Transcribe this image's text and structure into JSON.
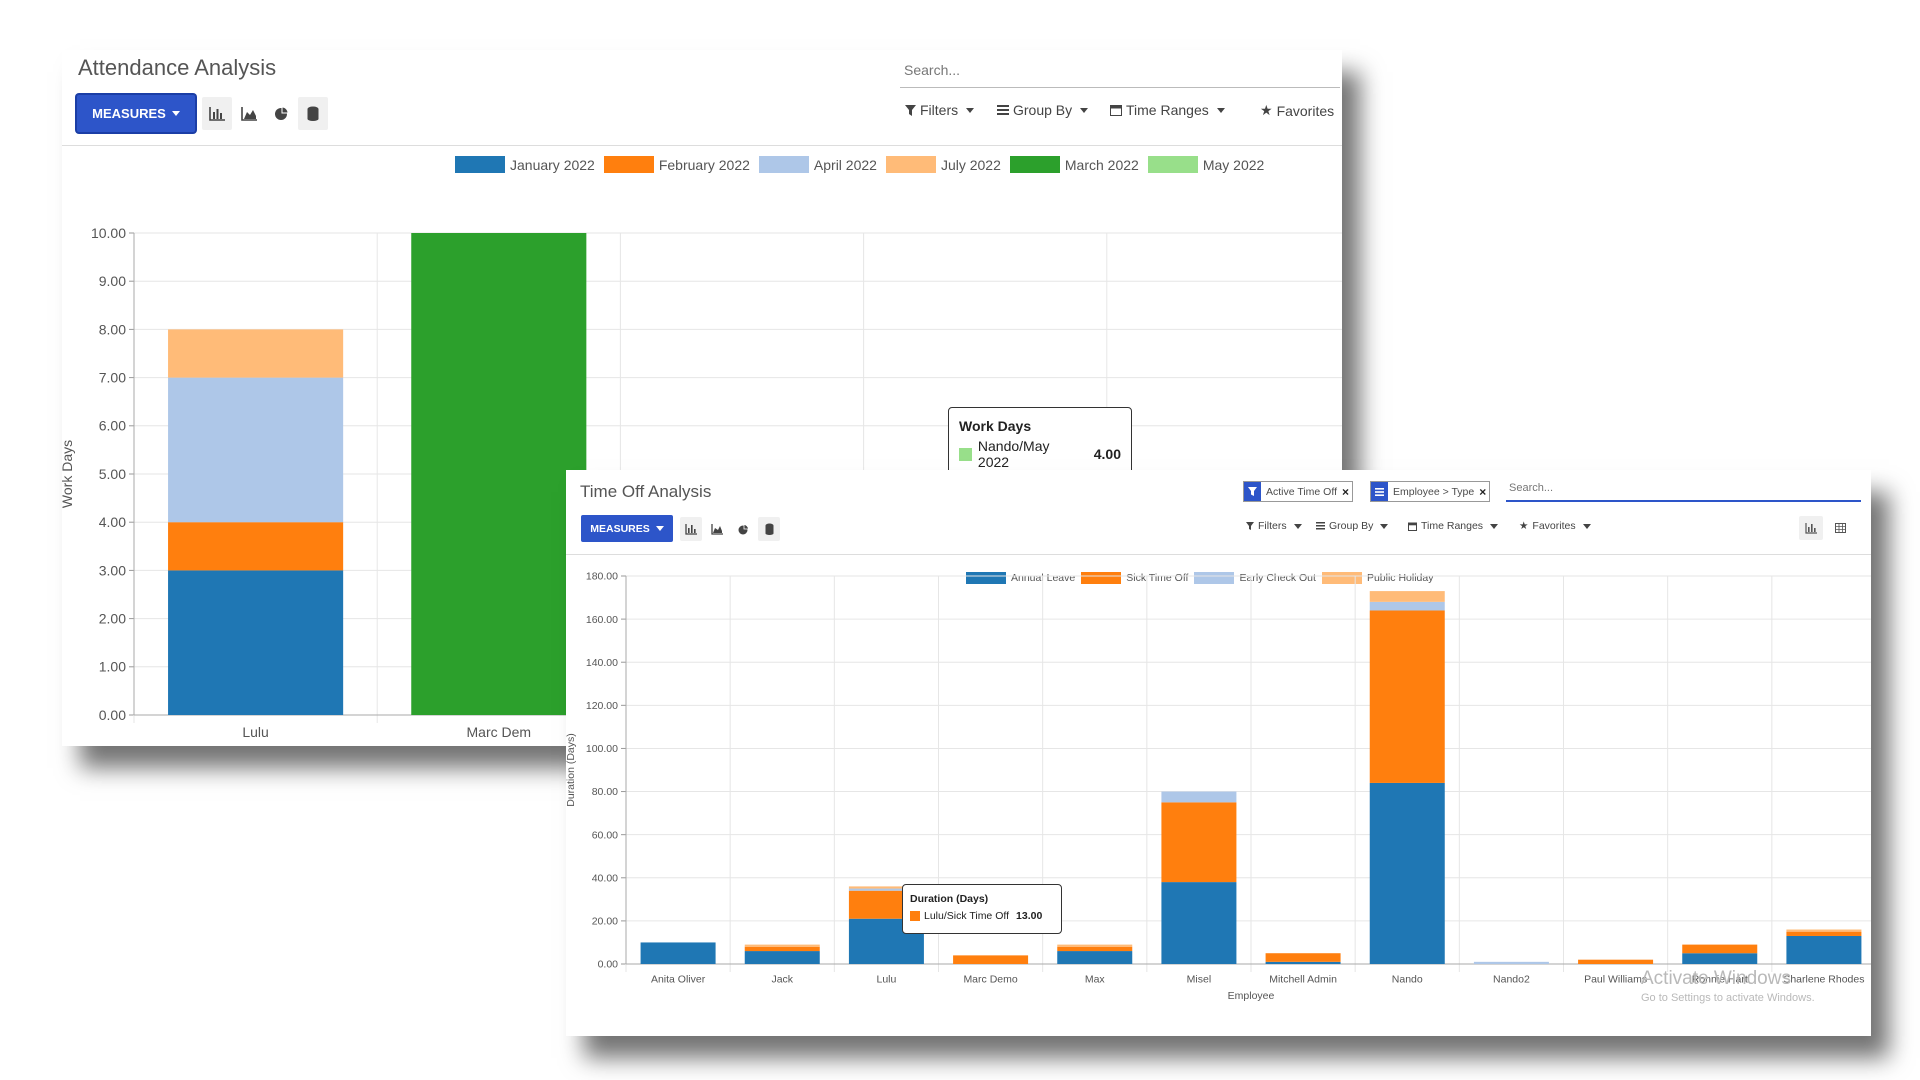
{
  "attendance": {
    "title": "Attendance Analysis",
    "measures_label": "MEASURES",
    "search_placeholder": "Search...",
    "filters_label": "Filters",
    "groupby_label": "Group By",
    "timeranges_label": "Time Ranges",
    "favorites_label": "Favorites",
    "tooltip": {
      "title": "Work Days",
      "series": "Nando/May 2022",
      "value": "4.00"
    },
    "chart_data": {
      "type": "bar",
      "stacked": true,
      "ylabel": "Work Days",
      "ylim": [
        0,
        10
      ],
      "yticks": [
        "0.00",
        "1.00",
        "2.00",
        "3.00",
        "4.00",
        "5.00",
        "6.00",
        "7.00",
        "8.00",
        "9.00",
        "10.00"
      ],
      "categories": [
        "Lulu",
        "Marc Dem",
        "",
        "",
        ""
      ],
      "series": [
        {
          "name": "January 2022",
          "color": "#1f77b4",
          "values": [
            3,
            0,
            0,
            0,
            0
          ]
        },
        {
          "name": "February 2022",
          "color": "#ff7f0e",
          "values": [
            1,
            0,
            0,
            0,
            0
          ]
        },
        {
          "name": "April 2022",
          "color": "#aec7e8",
          "values": [
            3,
            0,
            0,
            0,
            0
          ]
        },
        {
          "name": "July 2022",
          "color": "#ffbb78",
          "values": [
            1,
            0,
            0,
            0,
            0
          ]
        },
        {
          "name": "March 2022",
          "color": "#2ca02c",
          "values": [
            0,
            10,
            0,
            0,
            0
          ]
        },
        {
          "name": "May 2022",
          "color": "#98df8a",
          "values": [
            0,
            0,
            0,
            0,
            4
          ]
        }
      ],
      "grid": true,
      "legend": "top"
    }
  },
  "timeoff": {
    "title": "Time Off Analysis",
    "measures_label": "MEASURES",
    "facets": [
      {
        "icon": "filter-icon",
        "label": "Active Time Off"
      },
      {
        "icon": "groupby-icon",
        "label": "Employee > Type"
      }
    ],
    "search_placeholder": "Search...",
    "filters_label": "Filters",
    "groupby_label": "Group By",
    "timeranges_label": "Time Ranges",
    "favorites_label": "Favorites",
    "tooltip": {
      "title": "Duration (Days)",
      "series": "Lulu/Sick Time Off",
      "value": "13.00"
    },
    "watermark": {
      "line1": "Activate Windows",
      "line2": "Go to Settings to activate Windows."
    },
    "chart_data": {
      "type": "bar",
      "stacked": true,
      "xlabel": "Employee",
      "ylabel": "Duration (Days)",
      "ylim": [
        0,
        180
      ],
      "yticks": [
        "0.00",
        "20.00",
        "40.00",
        "60.00",
        "80.00",
        "100.00",
        "120.00",
        "140.00",
        "160.00",
        "180.00"
      ],
      "categories": [
        "Anita Oliver",
        "Jack",
        "Lulu",
        "Marc Demo",
        "Max",
        "Misel",
        "Mitchell Admin",
        "Nando",
        "Nando2",
        "Paul Williams",
        "Ronnie Hart",
        "Sharlene Rhodes"
      ],
      "series": [
        {
          "name": "Annual Leave",
          "color": "#1f77b4",
          "values": [
            10,
            6,
            21,
            0,
            6,
            38,
            1,
            84,
            0,
            0,
            5,
            13
          ]
        },
        {
          "name": "Sick Time Off",
          "color": "#ff7f0e",
          "values": [
            0,
            2,
            13,
            4,
            2,
            37,
            4,
            80,
            0,
            2,
            4,
            2
          ]
        },
        {
          "name": "Early Check Out",
          "color": "#aec7e8",
          "values": [
            0,
            0,
            1,
            0,
            0,
            5,
            0,
            4,
            1,
            0,
            0,
            0
          ]
        },
        {
          "name": "Public Holiday",
          "color": "#ffbb78",
          "values": [
            0,
            1,
            1,
            0,
            1,
            0,
            0,
            5,
            0,
            0,
            0,
            1
          ]
        }
      ],
      "grid": true,
      "legend": "top"
    }
  }
}
